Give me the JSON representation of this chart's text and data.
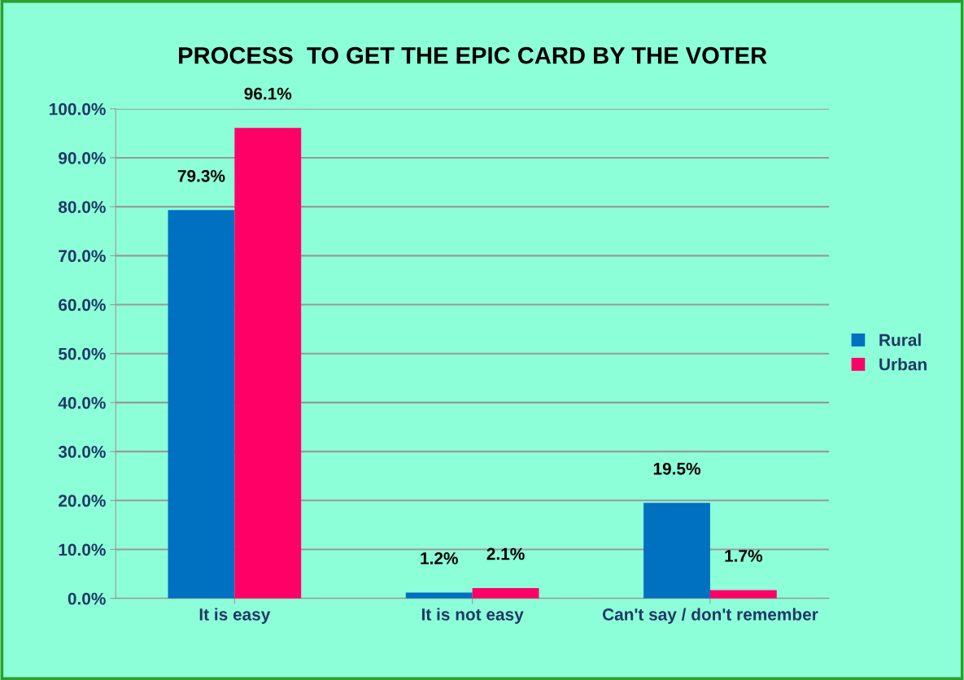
{
  "chart_data": {
    "type": "bar",
    "title": "PROCESS  TO GET THE EPIC CARD BY THE VOTER",
    "categories": [
      "It is easy",
      "It is not easy",
      "Can't say / don't remember"
    ],
    "series": [
      {
        "name": "Rural",
        "color": "#0070c0",
        "values": [
          79.3,
          1.2,
          19.5
        ],
        "value_labels": [
          "79.3%",
          "1.2%",
          "19.5%"
        ]
      },
      {
        "name": "Urban",
        "color": "#ff0066",
        "values": [
          96.1,
          2.1,
          1.7
        ],
        "value_labels": [
          "96.1%",
          "2.1%",
          "1.7%"
        ]
      }
    ],
    "ylim": [
      0,
      100
    ],
    "yticks": [
      {
        "value": 0,
        "label": "0.0%"
      },
      {
        "value": 10,
        "label": "10.0%"
      },
      {
        "value": 20,
        "label": "20.0%"
      },
      {
        "value": 30,
        "label": "30.0%"
      },
      {
        "value": 40,
        "label": "40.0%"
      },
      {
        "value": 50,
        "label": "50.0%"
      },
      {
        "value": 60,
        "label": "60.0%"
      },
      {
        "value": 70,
        "label": "70.0%"
      },
      {
        "value": 80,
        "label": "80.0%"
      },
      {
        "value": 90,
        "label": "90.0%"
      },
      {
        "value": 100,
        "label": "100.0%"
      }
    ],
    "grid": "y",
    "legend": "right"
  }
}
